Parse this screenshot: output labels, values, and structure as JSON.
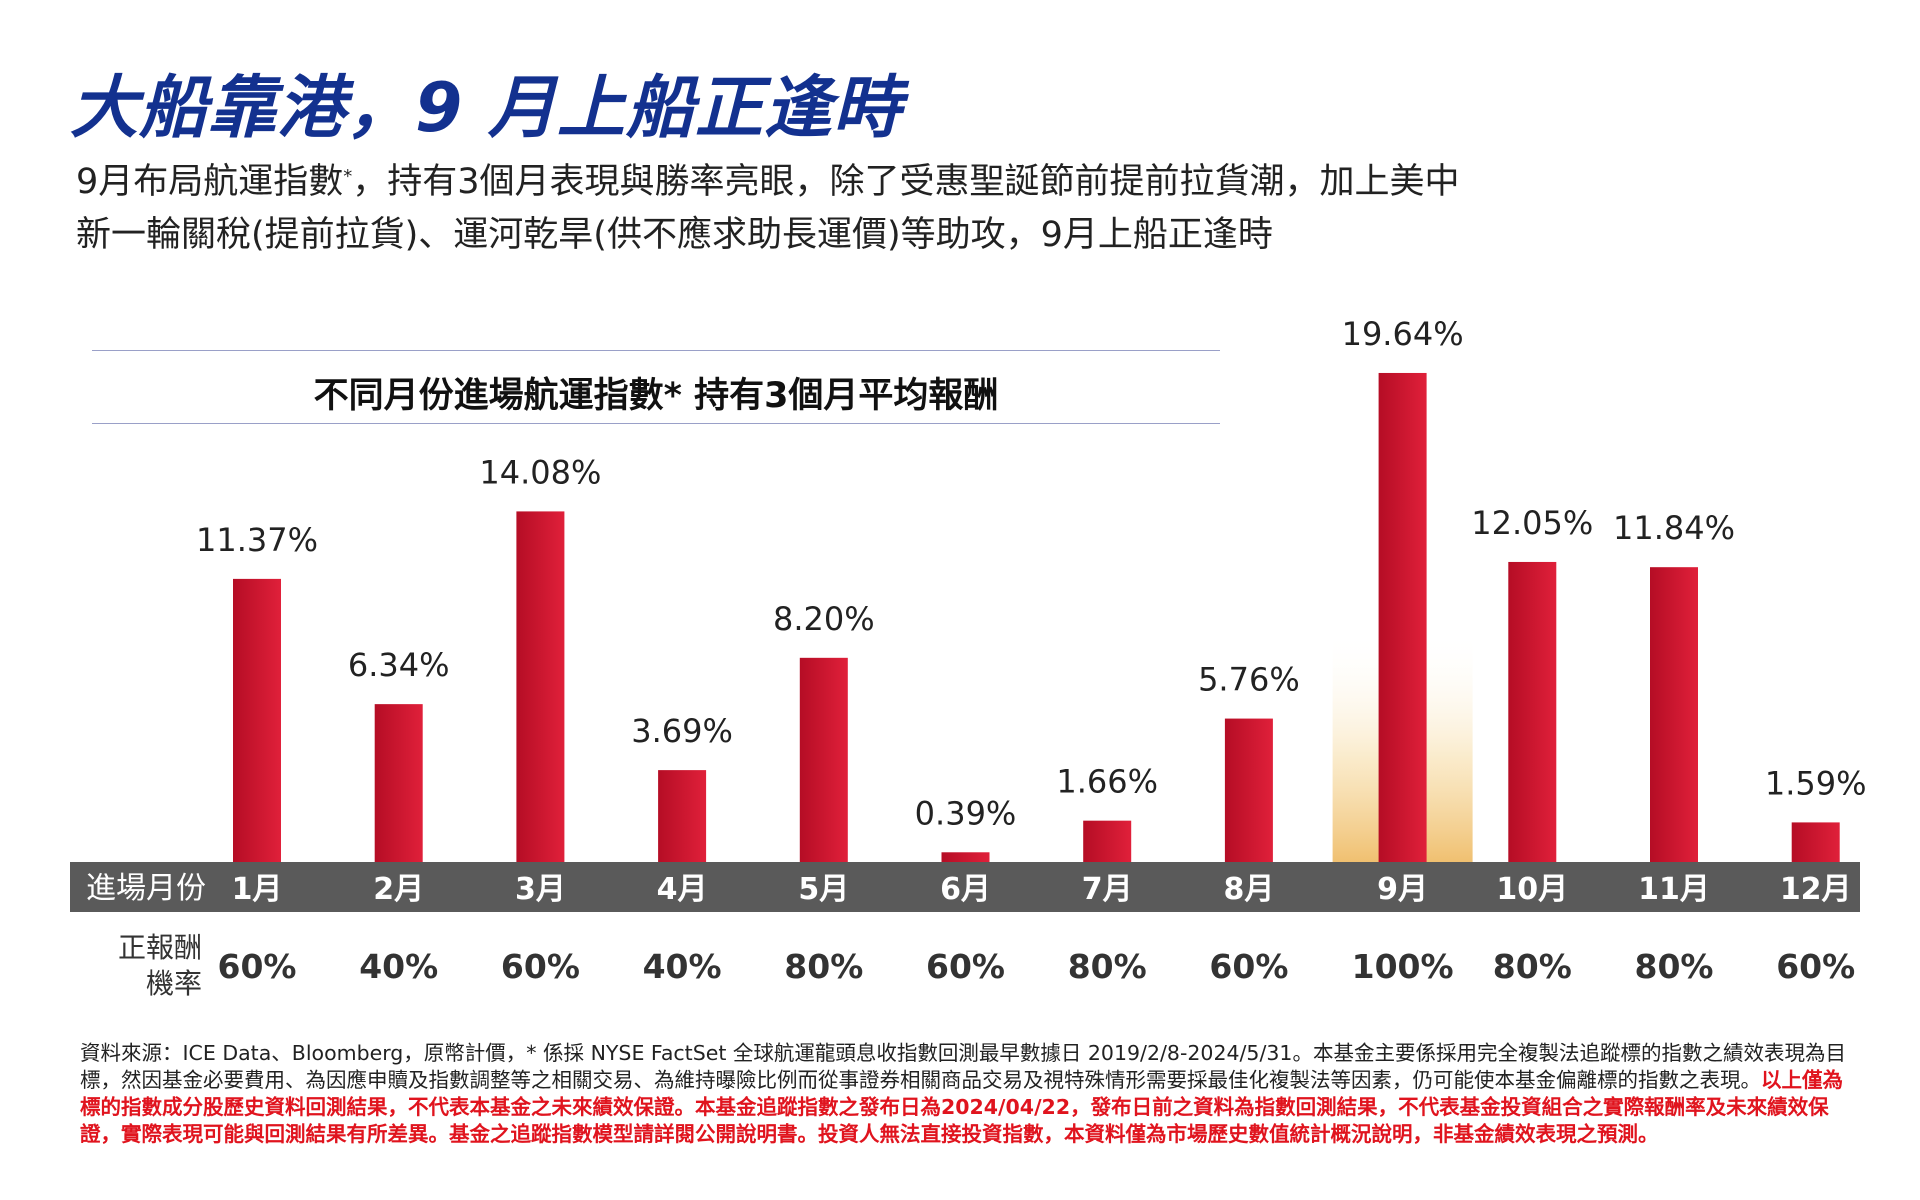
{
  "header": {
    "title": "大船靠港，9 月上船正逢時",
    "subtitle_line1_pre": "9月布局航運指數",
    "subtitle_asterisk": "*",
    "subtitle_line1_post": "，持有3個月表現與勝率亮眼，除了受惠聖誕節前提前拉貨潮，加上美中",
    "subtitle_line2": "新一輪關稅(提前拉貨)、運河乾旱(供不應求助長運價)等助攻，9月上船正逢時"
  },
  "chart_data": {
    "type": "bar",
    "title": "不同月份進場航運指數*  持有3個月平均報酬",
    "x_axis_label": "進場月份",
    "categories": [
      "1月",
      "2月",
      "3月",
      "4月",
      "5月",
      "6月",
      "7月",
      "8月",
      "9月",
      "10月",
      "11月",
      "12月"
    ],
    "values": [
      11.37,
      6.34,
      14.08,
      3.69,
      8.2,
      0.39,
      1.66,
      5.76,
      19.64,
      12.05,
      11.84,
      1.59
    ],
    "value_labels": [
      "11.37%",
      "6.34%",
      "14.08%",
      "3.69%",
      "8.20%",
      "0.39%",
      "1.66%",
      "5.76%",
      "19.64%",
      "12.05%",
      "11.84%",
      "1.59%"
    ],
    "unit": "%",
    "highlight_category": "9月",
    "positive_rate_label_line1": "正報酬",
    "positive_rate_label_line2": "機率",
    "positive_rates": [
      "60%",
      "40%",
      "60%",
      "40%",
      "80%",
      "60%",
      "80%",
      "60%",
      "100%",
      "80%",
      "80%",
      "60%"
    ],
    "ylim": [
      0,
      20
    ],
    "bar_color": "#c8102e",
    "highlight_color": "#f0c070",
    "axis_band_color": "#5a5a5a"
  },
  "footnote": {
    "source": "資料來源：ICE Data、Bloomberg，原幣計價，* 係採 NYSE FactSet 全球航運龍頭息收指數回測最早數據日 2019/2/8-2024/5/31。本基金主要係採用完全複製法追蹤標的指數之績效表現為目標，然因基金必要費用、為因應申贖及指數調整等之相關交易、為維持曝險比例而從事證券相關商品交易及視特殊情形需要採最佳化複製法等因素，仍可能使本基金偏離標的指數之表現。",
    "disclaimer": "以上僅為標的指數成分股歷史資料回測結果，不代表本基金之未來績效保證。本基金追蹤指數之發布日為2024/04/22，發布日前之資料為指數回測結果，不代表基金投資組合之實際報酬率及未來績效保證，實際表現可能與回測結果有所差異。基金之追蹤指數模型請詳閱公開說明書。投資人無法直接投資指數，本資料僅為市場歷史數值統計概況說明，非基金績效表現之預測。"
  }
}
